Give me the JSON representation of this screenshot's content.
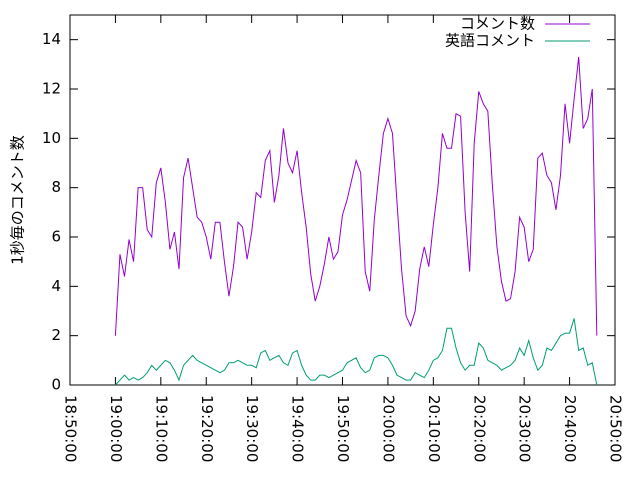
{
  "chart_data": {
    "type": "line",
    "ylabel": "1秒毎のコメント数",
    "x": [
      "19:00:00",
      "19:01:00",
      "19:02:00",
      "19:03:00",
      "19:04:00",
      "19:05:00",
      "19:06:00",
      "19:07:00",
      "19:08:00",
      "19:09:00",
      "19:10:00",
      "19:11:00",
      "19:12:00",
      "19:13:00",
      "19:14:00",
      "19:15:00",
      "19:16:00",
      "19:17:00",
      "19:18:00",
      "19:19:00",
      "19:20:00",
      "19:21:00",
      "19:22:00",
      "19:23:00",
      "19:24:00",
      "19:25:00",
      "19:26:00",
      "19:27:00",
      "19:28:00",
      "19:29:00",
      "19:30:00",
      "19:31:00",
      "19:32:00",
      "19:33:00",
      "19:34:00",
      "19:35:00",
      "19:36:00",
      "19:37:00",
      "19:38:00",
      "19:39:00",
      "19:40:00",
      "19:41:00",
      "19:42:00",
      "19:43:00",
      "19:44:00",
      "19:45:00",
      "19:46:00",
      "19:47:00",
      "19:48:00",
      "19:49:00",
      "19:50:00",
      "19:51:00",
      "19:52:00",
      "19:53:00",
      "19:54:00",
      "19:55:00",
      "19:56:00",
      "19:57:00",
      "19:58:00",
      "19:59:00",
      "20:00:00",
      "20:01:00",
      "20:02:00",
      "20:03:00",
      "20:04:00",
      "20:05:00",
      "20:06:00",
      "20:07:00",
      "20:08:00",
      "20:09:00",
      "20:10:00",
      "20:11:00",
      "20:12:00",
      "20:13:00",
      "20:14:00",
      "20:15:00",
      "20:16:00",
      "20:17:00",
      "20:18:00",
      "20:19:00",
      "20:20:00",
      "20:21:00",
      "20:22:00",
      "20:23:00",
      "20:24:00",
      "20:25:00",
      "20:26:00",
      "20:27:00",
      "20:28:00",
      "20:29:00",
      "20:30:00",
      "20:31:00",
      "20:32:00",
      "20:33:00",
      "20:34:00",
      "20:35:00",
      "20:36:00",
      "20:37:00",
      "20:38:00",
      "20:39:00",
      "20:40:00",
      "20:41:00",
      "20:42:00",
      "20:43:00",
      "20:44:00",
      "20:45:00",
      "20:46:00"
    ],
    "series": [
      {
        "name": "コメント数",
        "color": "#9400d3",
        "values": [
          2.0,
          5.3,
          4.4,
          5.9,
          5.0,
          8.0,
          8.0,
          6.3,
          6.0,
          8.2,
          8.8,
          7.4,
          5.5,
          6.2,
          4.7,
          8.4,
          9.2,
          8.0,
          6.8,
          6.6,
          6.0,
          5.1,
          6.6,
          6.6,
          5.0,
          3.6,
          4.8,
          6.6,
          6.4,
          5.1,
          6.2,
          7.8,
          7.6,
          9.1,
          9.5,
          7.4,
          8.5,
          10.4,
          9.0,
          8.6,
          9.5,
          7.8,
          6.4,
          4.5,
          3.4,
          4.0,
          4.9,
          6.0,
          5.1,
          5.4,
          6.9,
          7.5,
          8.3,
          9.1,
          8.6,
          4.6,
          3.8,
          6.7,
          8.5,
          10.2,
          10.8,
          10.2,
          7.4,
          4.7,
          2.8,
          2.4,
          3.0,
          4.7,
          5.6,
          4.8,
          6.5,
          8.0,
          10.2,
          9.6,
          9.6,
          11.0,
          10.9,
          7.0,
          4.6,
          9.8,
          11.9,
          11.4,
          11.1,
          8.1,
          5.6,
          4.2,
          3.4,
          3.5,
          4.6,
          6.8,
          6.4,
          5.0,
          5.5,
          9.2,
          9.4,
          8.5,
          8.2,
          7.1,
          8.5,
          11.4,
          9.8,
          11.6,
          13.3,
          10.4,
          10.8,
          12.0,
          2.0
        ]
      },
      {
        "name": "英語コメント",
        "color": "#009e73",
        "values": [
          0.0,
          0.2,
          0.4,
          0.2,
          0.3,
          0.2,
          0.3,
          0.5,
          0.8,
          0.6,
          0.8,
          1.0,
          0.9,
          0.6,
          0.2,
          0.8,
          1.0,
          1.2,
          1.0,
          0.9,
          0.8,
          0.7,
          0.6,
          0.5,
          0.6,
          0.9,
          0.9,
          1.0,
          0.9,
          0.8,
          0.8,
          0.7,
          1.3,
          1.4,
          1.0,
          1.1,
          1.2,
          0.9,
          0.8,
          1.3,
          1.4,
          0.8,
          0.4,
          0.2,
          0.2,
          0.4,
          0.4,
          0.3,
          0.4,
          0.5,
          0.6,
          0.9,
          1.0,
          1.1,
          0.7,
          0.5,
          0.6,
          1.1,
          1.2,
          1.2,
          1.1,
          0.8,
          0.4,
          0.3,
          0.2,
          0.2,
          0.5,
          0.4,
          0.3,
          0.6,
          1.0,
          1.1,
          1.4,
          2.3,
          2.3,
          1.5,
          0.9,
          0.6,
          0.8,
          0.8,
          1.7,
          1.5,
          1.0,
          0.9,
          0.8,
          0.6,
          0.7,
          0.8,
          1.0,
          1.5,
          1.2,
          1.8,
          1.1,
          0.6,
          0.8,
          1.5,
          1.4,
          1.7,
          2.0,
          2.1,
          2.1,
          2.7,
          1.4,
          1.5,
          0.8,
          0.9,
          0.0
        ]
      }
    ],
    "xlim": [
      "18:50:00",
      "20:50:00"
    ],
    "xticks": [
      "18:50:00",
      "19:00:00",
      "19:10:00",
      "19:20:00",
      "19:30:00",
      "19:40:00",
      "19:50:00",
      "20:00:00",
      "20:10:00",
      "20:20:00",
      "20:30:00",
      "20:40:00",
      "20:50:00"
    ],
    "ylim": [
      0,
      15
    ],
    "yticks": [
      0,
      2,
      4,
      6,
      8,
      10,
      12,
      14
    ],
    "grid": false,
    "legend": "top-right"
  }
}
